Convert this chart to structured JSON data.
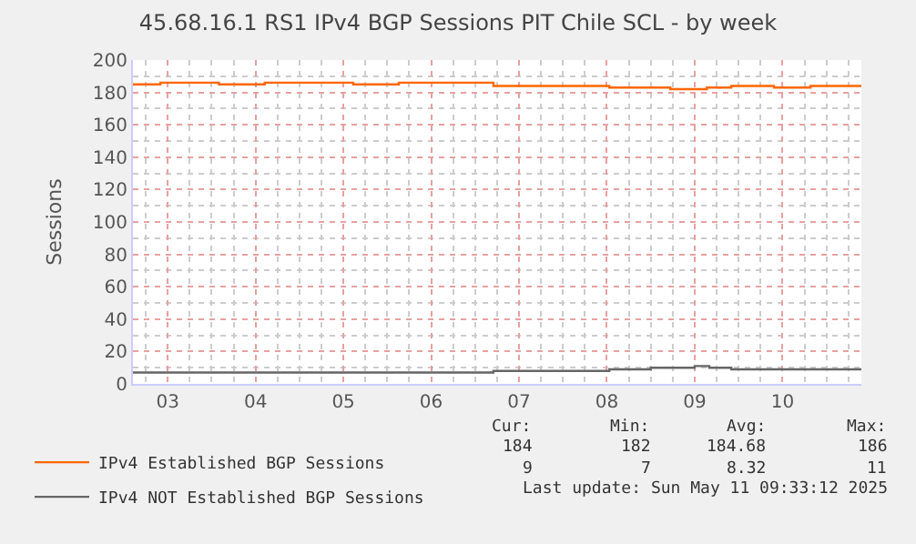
{
  "chart_data": {
    "type": "step",
    "title": "45.68.16.1 RS1 IPv4 BGP Sessions PIT Chile SCL - by week",
    "ylabel": "Sessions",
    "xlim": [
      "2025-05-03T02:30",
      "2025-05-11T09:33"
    ],
    "xticks": [
      {
        "value": "2025-05-03T12:00",
        "label": "03"
      },
      {
        "value": "2025-05-04T12:00",
        "label": "04"
      },
      {
        "value": "2025-05-05T12:00",
        "label": "05"
      },
      {
        "value": "2025-05-06T12:00",
        "label": "06"
      },
      {
        "value": "2025-05-07T12:00",
        "label": "07"
      },
      {
        "value": "2025-05-08T12:00",
        "label": "08"
      },
      {
        "value": "2025-05-09T12:00",
        "label": "09"
      },
      {
        "value": "2025-05-10T12:00",
        "label": "10"
      }
    ],
    "ylim": [
      0,
      200
    ],
    "yticks": [
      0,
      20,
      40,
      60,
      80,
      100,
      120,
      140,
      160,
      180,
      200
    ],
    "series": [
      {
        "name": "IPv4 Established BGP Sessions",
        "color": "#ff6600",
        "x": [
          "2025-05-03T02:30",
          "2025-05-03T10:00",
          "2025-05-04T02:00",
          "2025-05-04T14:30",
          "2025-05-05T14:40",
          "2025-05-06T03:10",
          "2025-05-07T05:00",
          "2025-05-08T12:40",
          "2025-05-09T05:20",
          "2025-05-09T15:20",
          "2025-05-09T22:00",
          "2025-05-10T09:40",
          "2025-05-10T19:40",
          "2025-05-11T09:33"
        ],
        "values": [
          185,
          186,
          185,
          186,
          185,
          186,
          184,
          183,
          182,
          183,
          184,
          183,
          184,
          184
        ]
      },
      {
        "name": "IPv4 NOT Established BGP Sessions",
        "color": "#666666",
        "x": [
          "2025-05-03T02:30",
          "2025-05-07T05:00",
          "2025-05-08T12:40",
          "2025-05-09T00:00",
          "2025-05-09T12:00",
          "2025-05-09T16:00",
          "2025-05-09T22:00",
          "2025-05-11T09:33"
        ],
        "values": [
          7,
          8,
          9,
          10,
          11,
          10,
          9,
          9
        ]
      }
    ],
    "grid": true,
    "legend": "bottom left",
    "annotations": [
      "Cur:",
      "Min:",
      "Avg:",
      "Max:",
      "184",
      "182",
      "184.68",
      "186",
      "9",
      "7",
      "8.32",
      "11",
      "Last update: Sun May 11 09:33:12 2025"
    ]
  }
}
